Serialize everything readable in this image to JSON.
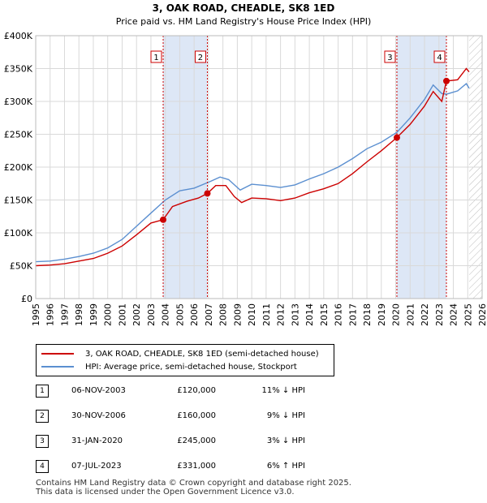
{
  "chart_data": {
    "type": "line",
    "title": "3, OAK ROAD, CHEADLE, SK8 1ED",
    "subtitle": "Price paid vs. HM Land Registry's House Price Index (HPI)",
    "xlim": [
      1995,
      2026
    ],
    "ylim": [
      0,
      400000
    ],
    "x_ticks": [
      "1995",
      "1996",
      "1997",
      "1998",
      "1999",
      "2000",
      "2001",
      "2002",
      "2003",
      "2004",
      "2005",
      "2006",
      "2007",
      "2008",
      "2009",
      "2010",
      "2011",
      "2012",
      "2013",
      "2014",
      "2015",
      "2016",
      "2017",
      "2018",
      "2019",
      "2020",
      "2021",
      "2022",
      "2023",
      "2024",
      "2025",
      "2026"
    ],
    "y_ticks": [
      {
        "value": 0,
        "label": "£0"
      },
      {
        "value": 50000,
        "label": "£50K"
      },
      {
        "value": 100000,
        "label": "£100K"
      },
      {
        "value": 150000,
        "label": "£150K"
      },
      {
        "value": 200000,
        "label": "£200K"
      },
      {
        "value": 250000,
        "label": "£250K"
      },
      {
        "value": 300000,
        "label": "£300K"
      },
      {
        "value": 350000,
        "label": "£350K"
      },
      {
        "value": 400000,
        "label": "£400K"
      }
    ],
    "grid": true,
    "shaded_bands": [
      {
        "from": 2003.85,
        "to": 2006.92
      },
      {
        "from": 2020.08,
        "to": 2023.52
      }
    ],
    "future_hatch_from": 2025.1,
    "series": [
      {
        "name": "3, OAK ROAD, CHEADLE, SK8 1ED (semi-detached house)",
        "color": "#cc0000",
        "points": [
          [
            1995,
            50000
          ],
          [
            1996,
            51000
          ],
          [
            1997,
            53000
          ],
          [
            1998,
            57000
          ],
          [
            1999,
            61000
          ],
          [
            2000,
            69000
          ],
          [
            2001,
            80000
          ],
          [
            2002,
            97000
          ],
          [
            2003,
            115000
          ],
          [
            2003.85,
            120000
          ],
          [
            2004.5,
            140000
          ],
          [
            2005.5,
            148000
          ],
          [
            2006.3,
            153000
          ],
          [
            2006.92,
            160000
          ],
          [
            2007.5,
            172000
          ],
          [
            2008.2,
            172000
          ],
          [
            2008.8,
            155000
          ],
          [
            2009.3,
            146000
          ],
          [
            2010,
            153000
          ],
          [
            2011,
            152000
          ],
          [
            2012,
            149000
          ],
          [
            2013,
            153000
          ],
          [
            2014,
            161000
          ],
          [
            2015,
            167000
          ],
          [
            2016,
            175000
          ],
          [
            2017,
            190000
          ],
          [
            2018,
            208000
          ],
          [
            2019,
            225000
          ],
          [
            2020.08,
            245000
          ],
          [
            2021,
            265000
          ],
          [
            2022,
            293000
          ],
          [
            2022.6,
            315000
          ],
          [
            2023.2,
            300000
          ],
          [
            2023.52,
            331000
          ],
          [
            2024.3,
            333000
          ],
          [
            2024.9,
            350000
          ],
          [
            2025.1,
            345000
          ]
        ]
      },
      {
        "name": "HPI: Average price, semi-detached house, Stockport",
        "color": "#5b8fd0",
        "points": [
          [
            1995,
            56000
          ],
          [
            1996,
            57000
          ],
          [
            1997,
            60000
          ],
          [
            1998,
            64000
          ],
          [
            1999,
            69000
          ],
          [
            2000,
            77000
          ],
          [
            2001,
            90000
          ],
          [
            2002,
            110000
          ],
          [
            2003,
            130000
          ],
          [
            2004,
            150000
          ],
          [
            2005,
            164000
          ],
          [
            2006,
            168000
          ],
          [
            2007,
            177000
          ],
          [
            2007.8,
            185000
          ],
          [
            2008.4,
            181000
          ],
          [
            2009.2,
            165000
          ],
          [
            2010,
            174000
          ],
          [
            2011,
            172000
          ],
          [
            2012,
            169000
          ],
          [
            2013,
            173000
          ],
          [
            2014,
            182000
          ],
          [
            2015,
            190000
          ],
          [
            2016,
            200000
          ],
          [
            2017,
            213000
          ],
          [
            2018,
            228000
          ],
          [
            2019,
            238000
          ],
          [
            2020.08,
            253000
          ],
          [
            2021,
            275000
          ],
          [
            2022,
            303000
          ],
          [
            2022.6,
            325000
          ],
          [
            2023.2,
            312000
          ],
          [
            2023.52,
            311000
          ],
          [
            2024.3,
            316000
          ],
          [
            2024.9,
            327000
          ],
          [
            2025.1,
            320000
          ]
        ]
      }
    ],
    "sales": [
      {
        "marker": "1",
        "x": 2003.85,
        "price": 120000,
        "date": "06-NOV-2003",
        "price_label": "£120,000",
        "hpi": "11% ↓ HPI"
      },
      {
        "marker": "2",
        "x": 2006.92,
        "price": 160000,
        "date": "30-NOV-2006",
        "price_label": "£160,000",
        "hpi": "9% ↓ HPI"
      },
      {
        "marker": "3",
        "x": 2020.08,
        "price": 245000,
        "date": "31-JAN-2020",
        "price_label": "£245,000",
        "hpi": "3% ↓ HPI"
      },
      {
        "marker": "4",
        "x": 2023.52,
        "price": 331000,
        "date": "07-JUL-2023",
        "price_label": "£331,000",
        "hpi": "6% ↑ HPI"
      }
    ]
  },
  "legend": {
    "property_label": "3, OAK ROAD, CHEADLE, SK8 1ED (semi-detached house)",
    "hpi_label": "HPI: Average price, semi-detached house, Stockport"
  },
  "colors": {
    "property": "#cc0000",
    "hpi": "#5b8fd0",
    "band": "#dde7f6"
  },
  "footer": {
    "line1": "Contains HM Land Registry data © Crown copyright and database right 2025.",
    "line2": "This data is licensed under the Open Government Licence v3.0."
  }
}
